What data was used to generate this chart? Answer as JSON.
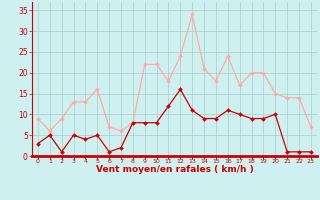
{
  "hours": [
    0,
    1,
    2,
    3,
    4,
    5,
    6,
    7,
    8,
    9,
    10,
    11,
    12,
    13,
    14,
    15,
    16,
    17,
    18,
    19,
    20,
    21,
    22,
    23
  ],
  "vent_moyen": [
    3,
    5,
    1,
    5,
    4,
    5,
    1,
    2,
    8,
    8,
    8,
    12,
    16,
    11,
    9,
    9,
    11,
    10,
    9,
    9,
    10,
    1,
    1,
    1
  ],
  "rafales": [
    9,
    6,
    9,
    13,
    13,
    16,
    7,
    6,
    8,
    22,
    22,
    18,
    24,
    34,
    21,
    18,
    24,
    17,
    20,
    20,
    15,
    14,
    14,
    7
  ],
  "vent_moyen_color": "#cc0000",
  "rafales_color": "#ffaaaa",
  "background_color": "#cff0f0",
  "grid_color": "#aacccc",
  "xlabel": "Vent moyen/en rafales ( km/h )",
  "xlabel_color": "#cc0000",
  "yticks": [
    0,
    5,
    10,
    15,
    20,
    25,
    30,
    35
  ],
  "ylim": [
    0,
    37
  ],
  "xlim": [
    -0.5,
    23.5
  ]
}
